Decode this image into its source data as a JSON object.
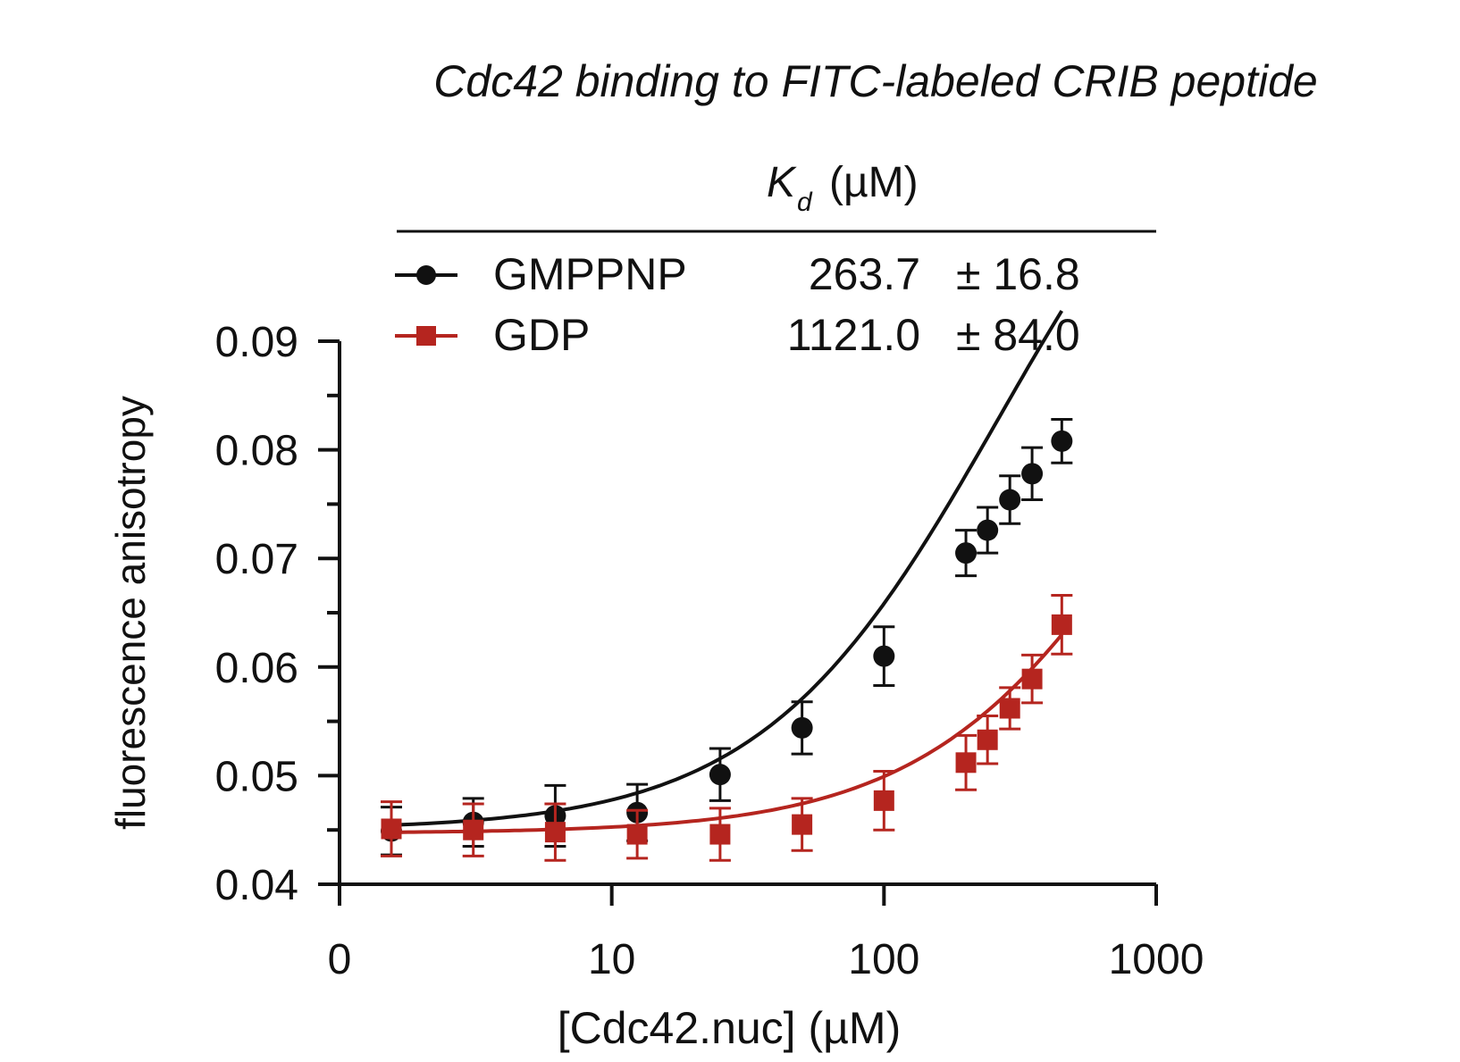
{
  "chart_data": {
    "type": "scatter",
    "title": "Cdc42 binding to FITC-labeled CRIB peptide",
    "xlabel": "[Cdc42.nuc] (µM)",
    "ylabel": "fluorescence anisotropy",
    "x_scale": "log",
    "xlim": [
      1,
      1000
    ],
    "ylim": [
      0.04,
      0.09
    ],
    "x_ticks": [
      {
        "value": 1,
        "label": "0"
      },
      {
        "value": 10,
        "label": "10"
      },
      {
        "value": 100,
        "label": "100"
      },
      {
        "value": 1000,
        "label": "1000"
      }
    ],
    "y_ticks": [
      {
        "value": 0.04,
        "label": "0.04"
      },
      {
        "value": 0.05,
        "label": "0.05"
      },
      {
        "value": 0.06,
        "label": "0.06"
      },
      {
        "value": 0.07,
        "label": "0.07"
      },
      {
        "value": 0.08,
        "label": "0.08"
      },
      {
        "value": 0.09,
        "label": "0.09"
      }
    ],
    "y_minor_step": 0.005,
    "legend": {
      "header_symbol": "K",
      "header_subscript": "d",
      "header_unit": "(µM)",
      "placement": "top"
    },
    "series": [
      {
        "name": "GMPPNP",
        "kd": "263.7",
        "kd_err": "± 16.8",
        "color": "#111111",
        "marker": "circle",
        "fit": {
          "y0": 0.045,
          "ymax": 0.1208,
          "kd": 263.7
        },
        "x": [
          1.55,
          3.1,
          6.2,
          12.4,
          25,
          50,
          100,
          200,
          240,
          290,
          350,
          450
        ],
        "y": [
          0.0449,
          0.0457,
          0.0463,
          0.0466,
          0.0501,
          0.0544,
          0.061,
          0.0705,
          0.0726,
          0.0754,
          0.0778,
          0.0808
        ],
        "err": [
          0.0022,
          0.0022,
          0.0028,
          0.0026,
          0.0024,
          0.0024,
          0.0027,
          0.0021,
          0.0021,
          0.0022,
          0.0024,
          0.002
        ]
      },
      {
        "name": "GDP",
        "kd": "1121.0",
        "kd_err": "± 84.0",
        "color": "#b5251f",
        "marker": "square",
        "fit": {
          "y0": 0.0447,
          "ymax": 0.1085,
          "kd": 1121.0
        },
        "x": [
          1.55,
          3.1,
          6.2,
          12.4,
          25,
          50,
          100,
          200,
          240,
          290,
          350,
          450
        ],
        "y": [
          0.0451,
          0.045,
          0.0448,
          0.0446,
          0.0446,
          0.0455,
          0.0477,
          0.0512,
          0.0533,
          0.0562,
          0.0589,
          0.0639
        ],
        "err": [
          0.0025,
          0.0024,
          0.0026,
          0.0022,
          0.0024,
          0.0024,
          0.0027,
          0.0025,
          0.0022,
          0.0019,
          0.0022,
          0.0027
        ]
      }
    ]
  }
}
